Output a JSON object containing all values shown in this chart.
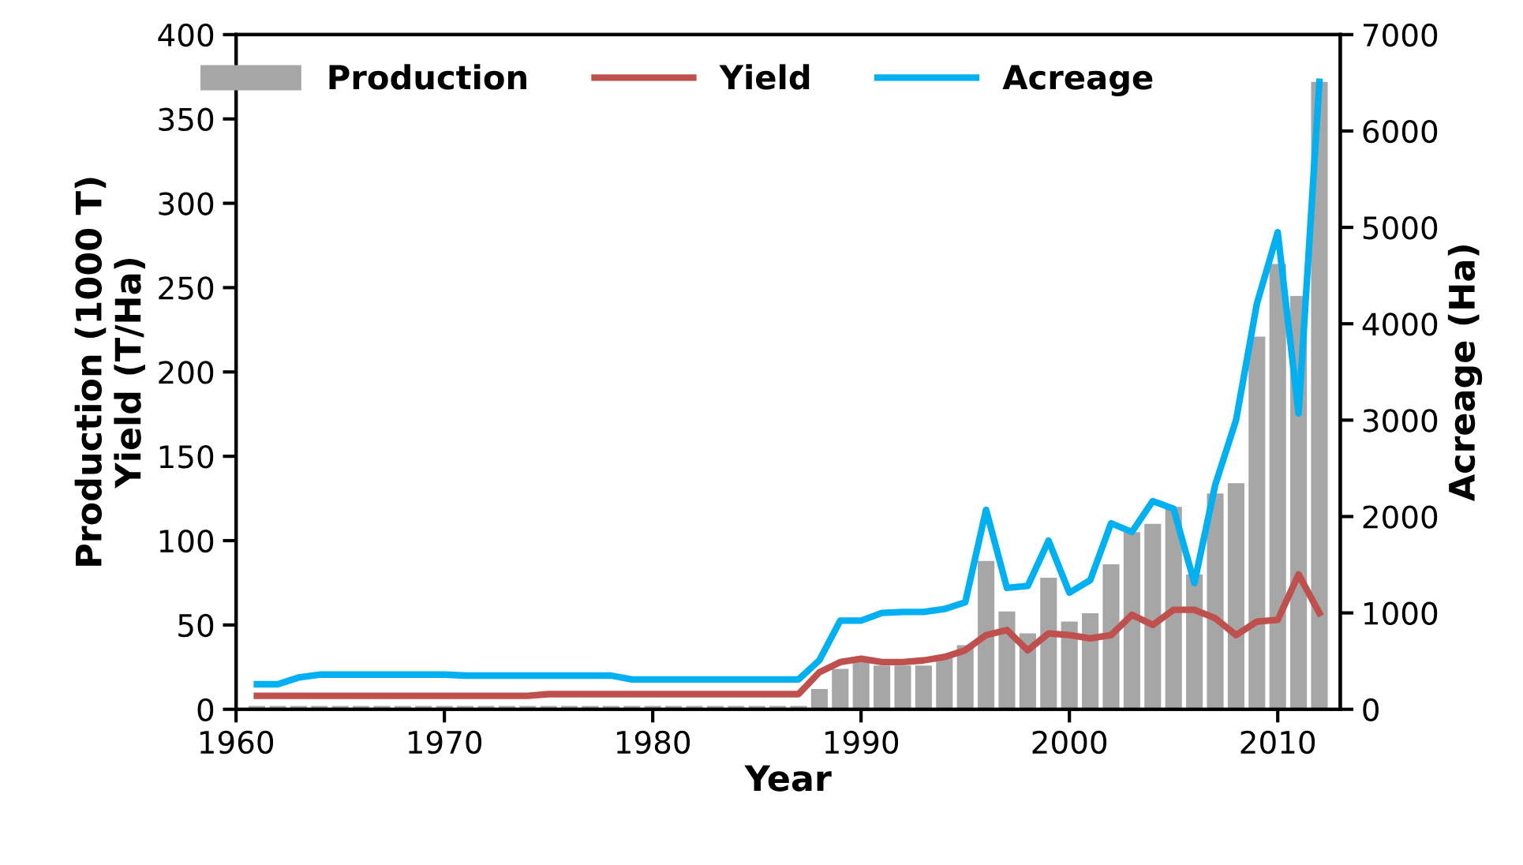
{
  "chart_data": {
    "type": "bar",
    "xlabel": "Year",
    "ylabel": "Production (1000 T)\nYield (T/Ha)",
    "y2label": "Acreage (Ha)",
    "x": [
      1961,
      1962,
      1963,
      1964,
      1965,
      1966,
      1967,
      1968,
      1969,
      1970,
      1971,
      1972,
      1973,
      1974,
      1975,
      1976,
      1977,
      1978,
      1979,
      1980,
      1981,
      1982,
      1983,
      1984,
      1985,
      1986,
      1987,
      1988,
      1989,
      1990,
      1991,
      1992,
      1993,
      1994,
      1995,
      1996,
      1997,
      1998,
      1999,
      2000,
      2001,
      2002,
      2003,
      2004,
      2005,
      2006,
      2007,
      2008,
      2009,
      2010,
      2011,
      2012
    ],
    "series": [
      {
        "name": "Production",
        "color": "#a6a6a6",
        "values": [
          2,
          2,
          2,
          2,
          2,
          2,
          2,
          2,
          2,
          2,
          2,
          2,
          2,
          2,
          2,
          2,
          2,
          2,
          2,
          2,
          2,
          2,
          2,
          2,
          2,
          2,
          2,
          12,
          24,
          28,
          26,
          26,
          26,
          31,
          38,
          88,
          58,
          45,
          78,
          52,
          57,
          86,
          105,
          110,
          120,
          80,
          128,
          134,
          221,
          264,
          245,
          372
        ]
      },
      {
        "name": "Yield",
        "type": "line",
        "color": "#c0504d",
        "values": [
          8,
          8,
          8,
          8,
          8,
          8,
          8,
          8,
          8,
          8,
          8,
          8,
          8,
          8,
          9,
          9,
          9,
          9,
          9,
          9,
          9,
          9,
          9,
          9,
          9,
          9,
          9,
          22,
          28,
          30,
          28,
          28,
          29,
          31,
          35,
          44,
          47,
          35,
          45,
          44,
          42,
          44,
          56,
          50,
          59,
          59,
          54,
          44,
          52,
          53,
          80,
          57
        ]
      },
      {
        "name": "Acreage",
        "type": "line",
        "axis": "y2",
        "color": "#00b0f0",
        "values": [
          260,
          260,
          330,
          360,
          360,
          360,
          360,
          360,
          360,
          360,
          350,
          350,
          350,
          350,
          350,
          350,
          350,
          350,
          310,
          310,
          310,
          310,
          310,
          310,
          310,
          310,
          310,
          510,
          920,
          920,
          1000,
          1010,
          1010,
          1040,
          1110,
          2070,
          1260,
          1280,
          1750,
          1210,
          1340,
          1930,
          1840,
          2160,
          2080,
          1310,
          2330,
          3000,
          4210,
          4950,
          3070,
          6510
        ]
      }
    ],
    "xlim": [
      1960,
      2013
    ],
    "xticks": [
      1960,
      1970,
      1980,
      1990,
      2000,
      2010
    ],
    "ylim": [
      0,
      400
    ],
    "yticks": [
      0,
      50,
      100,
      150,
      200,
      250,
      300,
      350,
      400
    ],
    "y2lim": [
      0,
      7000
    ],
    "y2ticks": [
      0,
      1000,
      2000,
      3000,
      4000,
      5000,
      6000,
      7000
    ],
    "grid": false,
    "legend": "top",
    "marker": "none",
    "line_style": "solid"
  }
}
